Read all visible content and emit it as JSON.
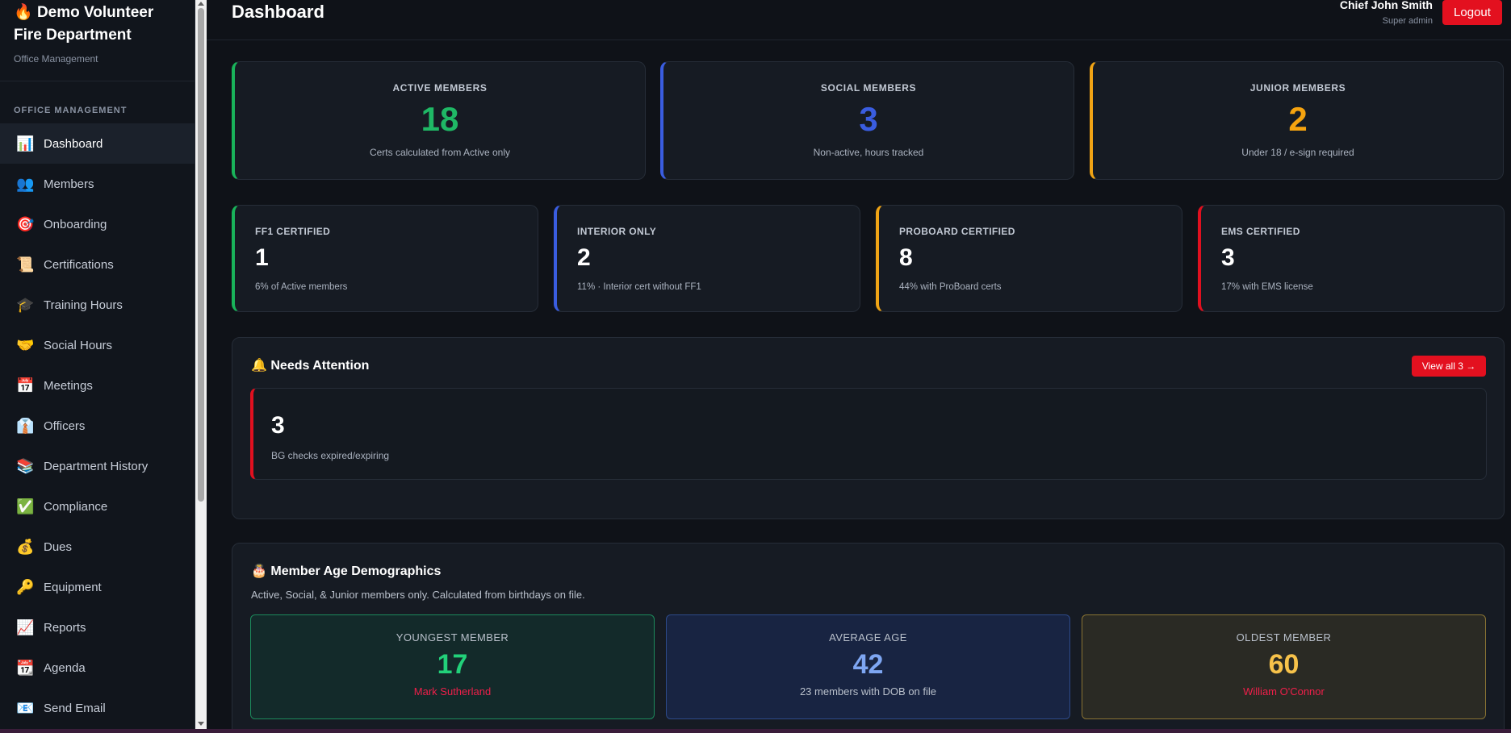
{
  "sidebar": {
    "brand_icon": "🔥",
    "brand_title": "Demo Volunteer Fire Department",
    "brand_sub": "Office Management",
    "section_label": "OFFICE MANAGEMENT",
    "items": [
      {
        "icon": "📊",
        "label": "Dashboard"
      },
      {
        "icon": "👥",
        "label": "Members"
      },
      {
        "icon": "🎯",
        "label": "Onboarding"
      },
      {
        "icon": "📜",
        "label": "Certifications"
      },
      {
        "icon": "🎓",
        "label": "Training Hours"
      },
      {
        "icon": "🤝",
        "label": "Social Hours"
      },
      {
        "icon": "📅",
        "label": "Meetings"
      },
      {
        "icon": "👔",
        "label": "Officers"
      },
      {
        "icon": "📚",
        "label": "Department History"
      },
      {
        "icon": "✅",
        "label": "Compliance"
      },
      {
        "icon": "💰",
        "label": "Dues"
      },
      {
        "icon": "🔑",
        "label": "Equipment"
      },
      {
        "icon": "📈",
        "label": "Reports"
      },
      {
        "icon": "📆",
        "label": "Agenda"
      },
      {
        "icon": "📧",
        "label": "Send Email"
      }
    ]
  },
  "header": {
    "title": "Dashboard",
    "user_name": "Chief John Smith",
    "user_role": "Super admin",
    "logout_label": "Logout"
  },
  "top_stats": [
    {
      "label": "ACTIVE MEMBERS",
      "value": "18",
      "sub": "Certs calculated from Active only",
      "color": "#1fb865"
    },
    {
      "label": "SOCIAL MEMBERS",
      "value": "3",
      "sub": "Non-active, hours tracked",
      "color": "#3a5de0"
    },
    {
      "label": "JUNIOR MEMBERS",
      "value": "2",
      "sub": "Under 18 / e-sign required",
      "color": "#f5a30f"
    }
  ],
  "cert_stats": [
    {
      "label": "FF1 CERTIFIED",
      "value": "1",
      "sub": "6% of Active members"
    },
    {
      "label": "INTERIOR ONLY",
      "value": "2",
      "sub": "11% · Interior cert without FF1"
    },
    {
      "label": "PROBOARD CERTIFIED",
      "value": "8",
      "sub": "44% with ProBoard certs"
    },
    {
      "label": "EMS CERTIFIED",
      "value": "3",
      "sub": "17% with EMS license"
    }
  ],
  "attention": {
    "icon": "🔔",
    "title": "Needs Attention",
    "view_all_label": "View all 3 →",
    "item_value": "3",
    "item_sub": "BG checks expired/expiring"
  },
  "demographics": {
    "icon": "🎂",
    "title": "Member Age Demographics",
    "description": "Active, Social, & Junior members only. Calculated from birthdays on file.",
    "youngest": {
      "label": "YOUNGEST MEMBER",
      "value": "17",
      "sub": "Mark Sutherland",
      "color": "#22d17a",
      "sub_color": "#ef1f4a"
    },
    "average": {
      "label": "AVERAGE AGE",
      "value": "42",
      "sub": "23 members with DOB on file",
      "color": "#7ea6f2",
      "sub_color": "#b9c0cb"
    },
    "oldest": {
      "label": "OLDEST MEMBER",
      "value": "60",
      "sub": "William O'Connor",
      "color": "#f7c24a",
      "sub_color": "#ef1f4a"
    }
  }
}
